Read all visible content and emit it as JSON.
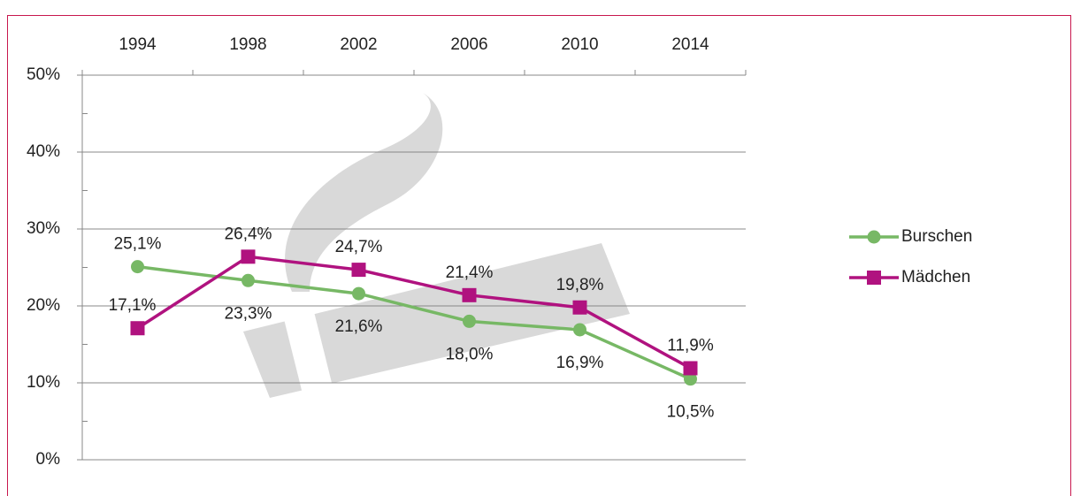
{
  "chart_data": {
    "type": "line",
    "categories": [
      "1994",
      "1998",
      "2002",
      "2006",
      "2010",
      "2014"
    ],
    "series": [
      {
        "name": "Burschen",
        "color": "#77b865",
        "marker": "circle",
        "values": [
          25.1,
          23.3,
          21.6,
          18.0,
          16.9,
          10.5
        ],
        "value_labels": [
          "25,1%",
          "23,3%",
          "21,6%",
          "18,0%",
          "16,9%",
          "10,5%"
        ]
      },
      {
        "name": "Mädchen",
        "color": "#b0127f",
        "marker": "square",
        "values": [
          17.1,
          26.4,
          24.7,
          21.4,
          19.8,
          11.9
        ],
        "value_labels": [
          "17,1%",
          "26,4%",
          "24,7%",
          "21,4%",
          "19,8%",
          "11,9%"
        ]
      }
    ],
    "ylim": [
      0,
      50
    ],
    "yticks": [
      {
        "value": 0,
        "label": "0%"
      },
      {
        "value": 10,
        "label": "10%"
      },
      {
        "value": 20,
        "label": "20%"
      },
      {
        "value": 30,
        "label": "30%"
      },
      {
        "value": 40,
        "label": "40%"
      },
      {
        "value": 50,
        "label": "50%"
      }
    ],
    "grid": true,
    "legend": "right"
  }
}
